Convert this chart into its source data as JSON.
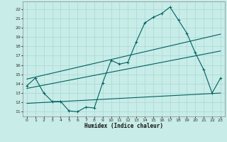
{
  "xlabel": "Humidex (Indice chaleur)",
  "bg_color": "#c8ece8",
  "grid_color": "#a8d8d4",
  "line_color": "#006060",
  "xlim": [
    -0.5,
    23.5
  ],
  "ylim": [
    10.5,
    22.8
  ],
  "x_ticks": [
    0,
    1,
    2,
    3,
    4,
    5,
    6,
    7,
    8,
    9,
    10,
    11,
    12,
    13,
    14,
    15,
    16,
    17,
    18,
    19,
    20,
    21,
    22,
    23
  ],
  "y_ticks": [
    11,
    12,
    13,
    14,
    15,
    16,
    17,
    18,
    19,
    20,
    21,
    22
  ],
  "series1_x": [
    0,
    1,
    2,
    3,
    4,
    5,
    6,
    7,
    8,
    9,
    10,
    11,
    12,
    13,
    14,
    15,
    16,
    17,
    18,
    19,
    20,
    21,
    22,
    23
  ],
  "series1_y": [
    13.8,
    14.6,
    13.0,
    12.1,
    12.1,
    11.1,
    11.0,
    11.5,
    11.4,
    14.1,
    16.5,
    16.1,
    16.3,
    18.5,
    20.5,
    21.1,
    21.5,
    22.2,
    20.8,
    19.4,
    17.3,
    15.5,
    13.0,
    14.6
  ],
  "series2_x": [
    0,
    23
  ],
  "series2_y": [
    14.5,
    19.3
  ],
  "series3_x": [
    0,
    23
  ],
  "series3_y": [
    13.5,
    17.5
  ],
  "series4_x": [
    0,
    23
  ],
  "series4_y": [
    11.9,
    13.0
  ]
}
